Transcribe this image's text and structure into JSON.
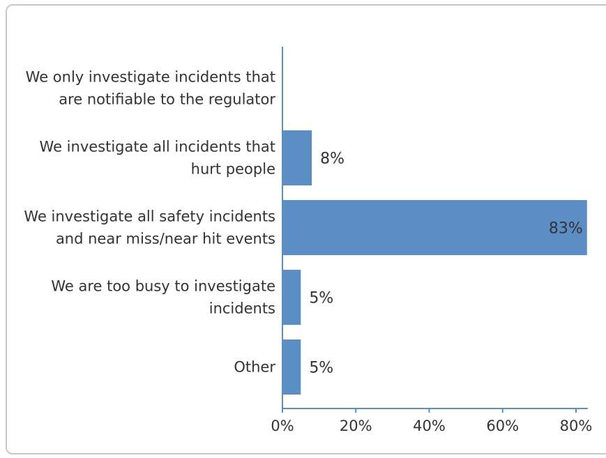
{
  "chart_data": {
    "type": "bar",
    "orientation": "horizontal",
    "categories": [
      [
        "We only investigate incidents that",
        "are notifiable to the regulator"
      ],
      [
        "We investigate all incidents that",
        "hurt people"
      ],
      [
        "We investigate all safety incidents",
        "and near miss/near hit events"
      ],
      [
        "We are too busy to investigate",
        "incidents"
      ],
      [
        "Other"
      ]
    ],
    "values": [
      0,
      8,
      83,
      5,
      5
    ],
    "value_labels": [
      "",
      "8%",
      "83%",
      "5%",
      "5%"
    ],
    "xticks": [
      "0%",
      "20%",
      "40%",
      "60%",
      "80%"
    ],
    "xtick_values": [
      0,
      20,
      40,
      60,
      80
    ],
    "xlim": [
      0,
      83
    ],
    "bar_color": "#5b8ec4",
    "axis_color": "#5b8ec4",
    "grid": false,
    "legend": "none"
  }
}
